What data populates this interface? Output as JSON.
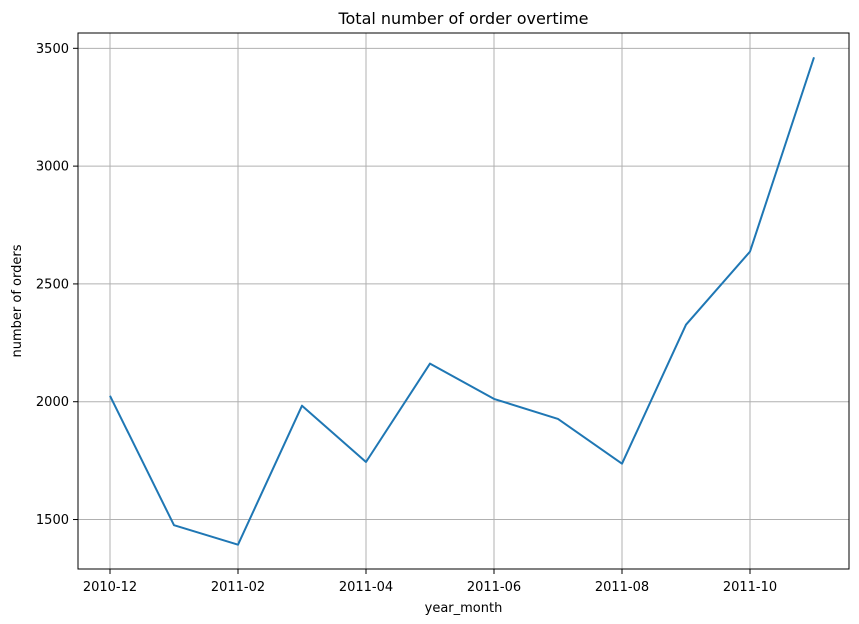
{
  "chart_data": {
    "type": "line",
    "title": "Total number of order overtime",
    "xlabel": "year_month",
    "ylabel": "number of orders",
    "x": [
      "2010-12",
      "2011-01",
      "2011-02",
      "2011-03",
      "2011-04",
      "2011-05",
      "2011-06",
      "2011-07",
      "2011-08",
      "2011-09",
      "2011-10",
      "2011-11"
    ],
    "series": [
      {
        "values": [
          2025,
          1476,
          1393,
          1983,
          1744,
          2162,
          2012,
          1927,
          1737,
          2327,
          2637,
          3462
        ]
      }
    ],
    "xticks": [
      "2010-12",
      "2011-02",
      "2011-04",
      "2011-06",
      "2011-08",
      "2011-10"
    ],
    "yticks": [
      1500,
      2000,
      2500,
      3000,
      3500
    ],
    "ylim": [
      1290,
      3565
    ],
    "grid": true,
    "colors": {
      "line": "#1f77b4",
      "grid": "#b0b0b0",
      "axes": "#000000"
    }
  }
}
